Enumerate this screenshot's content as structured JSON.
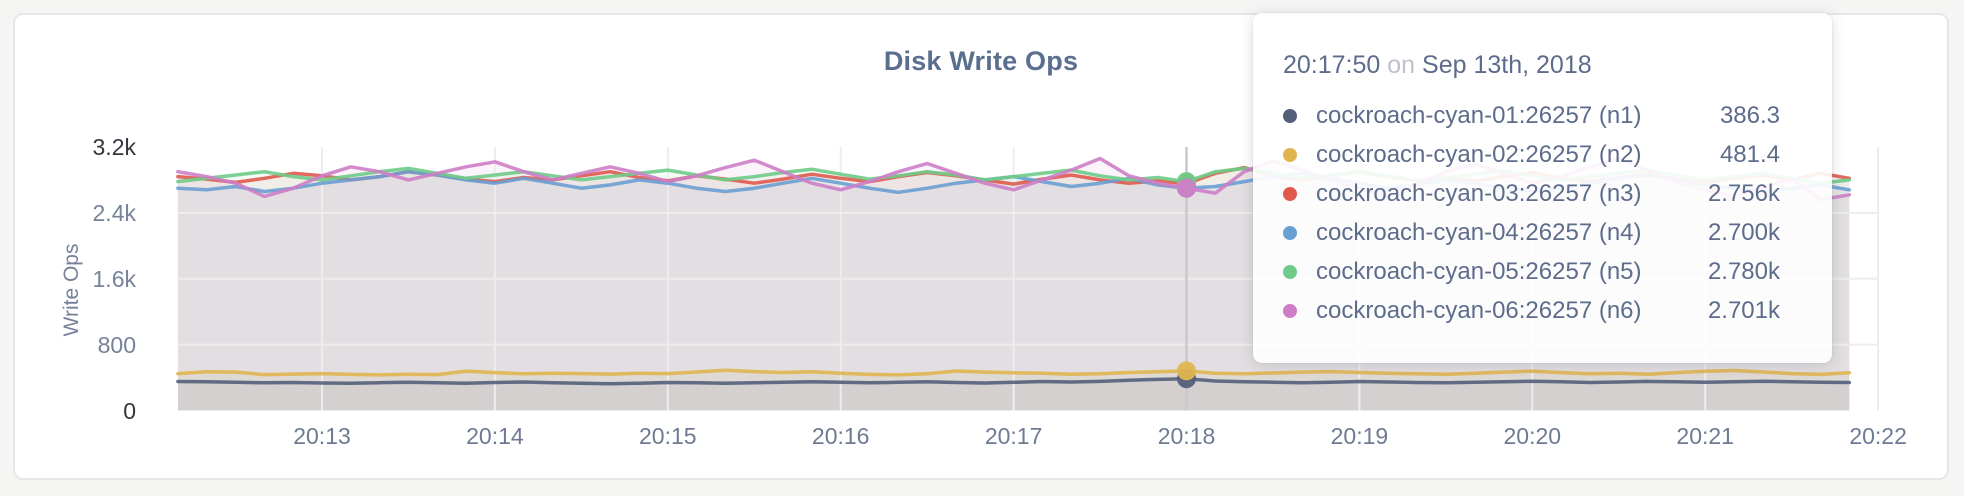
{
  "page": {
    "background": "#f5f5f4",
    "card_background": "#ffffff",
    "card_border": "#e7e7e7"
  },
  "chart_data": {
    "type": "line",
    "title": "Disk Write Ops",
    "ylabel": "Write Ops",
    "ylim": [
      0,
      3200
    ],
    "grid": "on",
    "legend_position": "none (series listed in hover tooltip)",
    "y_ticks": [
      {
        "value": 3200,
        "label": "3.2k",
        "strong": true
      },
      {
        "value": 2400,
        "label": "2.4k",
        "strong": false
      },
      {
        "value": 1600,
        "label": "1.6k",
        "strong": false
      },
      {
        "value": 800,
        "label": "800",
        "strong": false
      },
      {
        "value": 0,
        "label": "0",
        "strong": true
      }
    ],
    "x_ticks": [
      {
        "t": 780,
        "label": "20:13"
      },
      {
        "t": 840,
        "label": "20:14"
      },
      {
        "t": 900,
        "label": "20:15"
      },
      {
        "t": 960,
        "label": "20:16"
      },
      {
        "t": 1020,
        "label": "20:17"
      },
      {
        "t": 1080,
        "label": "20:18"
      },
      {
        "t": 1140,
        "label": "20:19"
      },
      {
        "t": 1200,
        "label": "20:20"
      },
      {
        "t": 1260,
        "label": "20:21"
      },
      {
        "t": 1320,
        "label": "20:22"
      }
    ],
    "x_unit": "time of day (Sep 13th, 2018), seconds after 20:00:00",
    "t_start": 730,
    "t_step": 10,
    "n_points": 59,
    "hover": {
      "index": 35,
      "time": "20:17:50",
      "date": "Sep 13th, 2018"
    },
    "series": [
      {
        "name": "cockroach-cyan-01:26257 (n1)",
        "color": "#535f7a",
        "values": [
          352,
          348,
          342,
          336,
          340,
          334,
          330,
          338,
          344,
          336,
          332,
          340,
          346,
          338,
          330,
          326,
          332,
          340,
          336,
          330,
          336,
          344,
          350,
          342,
          336,
          342,
          348,
          340,
          334,
          342,
          352,
          346,
          354,
          368,
          378,
          386.3,
          358,
          350,
          344,
          338,
          344,
          352,
          346,
          340,
          336,
          342,
          350,
          356,
          348,
          340,
          346,
          354,
          348,
          342,
          348,
          356,
          350,
          344,
          340
        ]
      },
      {
        "name": "cockroach-cyan-02:26257 (n2)",
        "color": "#e0b54f",
        "values": [
          448,
          470,
          466,
          436,
          442,
          448,
          438,
          432,
          440,
          436,
          478,
          460,
          446,
          452,
          448,
          442,
          452,
          448,
          468,
          488,
          472,
          462,
          470,
          452,
          438,
          432,
          446,
          480,
          466,
          458,
          452,
          440,
          446,
          462,
          470,
          481.4,
          452,
          446,
          456,
          466,
          472,
          462,
          452,
          446,
          440,
          452,
          466,
          478,
          460,
          446,
          452,
          440,
          460,
          476,
          486,
          468,
          448,
          438,
          458
        ]
      },
      {
        "name": "cockroach-cyan-03:26257 (n3)",
        "color": "#df5a4d",
        "values": [
          2840,
          2810,
          2770,
          2820,
          2880,
          2850,
          2800,
          2840,
          2900,
          2860,
          2810,
          2780,
          2830,
          2800,
          2850,
          2900,
          2830,
          2790,
          2850,
          2810,
          2760,
          2810,
          2870,
          2820,
          2780,
          2840,
          2890,
          2850,
          2800,
          2750,
          2810,
          2860,
          2800,
          2760,
          2790,
          2756,
          2880,
          2950,
          2850,
          2800,
          2850,
          2900,
          2840,
          2790,
          2830,
          2790,
          2840,
          2890,
          2820,
          2780,
          2830,
          2870,
          2810,
          2770,
          2820,
          2860,
          2800,
          2880,
          2820
        ]
      },
      {
        "name": "cockroach-cyan-04:26257 (n4)",
        "color": "#6a9fd3",
        "values": [
          2700,
          2680,
          2720,
          2660,
          2700,
          2760,
          2800,
          2840,
          2900,
          2860,
          2800,
          2760,
          2820,
          2760,
          2700,
          2740,
          2800,
          2760,
          2700,
          2660,
          2700,
          2760,
          2820,
          2760,
          2700,
          2650,
          2700,
          2760,
          2800,
          2840,
          2780,
          2720,
          2760,
          2820,
          2740,
          2700,
          2720,
          2780,
          2840,
          2880,
          2820,
          2760,
          2700,
          2740,
          2800,
          2760,
          2700,
          2660,
          2700,
          2760,
          2820,
          2860,
          2800,
          2740,
          2700,
          2660,
          2700,
          2740,
          2680
        ]
      },
      {
        "name": "cockroach-cyan-05:26257 (n5)",
        "color": "#6fcb88",
        "values": [
          2780,
          2820,
          2860,
          2900,
          2840,
          2800,
          2850,
          2900,
          2940,
          2880,
          2820,
          2860,
          2900,
          2850,
          2800,
          2840,
          2880,
          2920,
          2860,
          2800,
          2840,
          2890,
          2930,
          2870,
          2810,
          2850,
          2900,
          2860,
          2800,
          2840,
          2880,
          2920,
          2850,
          2800,
          2830,
          2780,
          2900,
          2940,
          2880,
          2820,
          2860,
          2900,
          2850,
          2790,
          2830,
          2870,
          2910,
          2850,
          2800,
          2840,
          2880,
          2920,
          2860,
          2800,
          2840,
          2880,
          2820,
          2760,
          2800
        ]
      },
      {
        "name": "cockroach-cyan-06:26257 (n6)",
        "color": "#cd7ec6",
        "values": [
          2900,
          2840,
          2760,
          2600,
          2700,
          2850,
          2960,
          2900,
          2800,
          2880,
          2960,
          3020,
          2900,
          2800,
          2880,
          2960,
          2880,
          2780,
          2850,
          2950,
          3040,
          2900,
          2760,
          2680,
          2780,
          2900,
          3000,
          2880,
          2760,
          2680,
          2800,
          2920,
          3060,
          2850,
          2760,
          2701,
          2640,
          2900,
          3030,
          2920,
          2800,
          2700,
          2600,
          2750,
          2900,
          3000,
          2880,
          2760,
          2840,
          2960,
          3060,
          2920,
          2780,
          2680,
          2600,
          2700,
          2820,
          2560,
          2620
        ]
      }
    ]
  },
  "tooltip": {
    "time": "20:17:50",
    "conjunction": "on",
    "date": "Sep 13th, 2018",
    "rows": [
      {
        "name": "cockroach-cyan-01:26257 (n1)",
        "value": "386.3",
        "color": "#535f7a"
      },
      {
        "name": "cockroach-cyan-02:26257 (n2)",
        "value": "481.4",
        "color": "#e0b54f"
      },
      {
        "name": "cockroach-cyan-03:26257 (n3)",
        "value": "2.756k",
        "color": "#df5a4d"
      },
      {
        "name": "cockroach-cyan-04:26257 (n4)",
        "value": "2.700k",
        "color": "#6a9fd3"
      },
      {
        "name": "cockroach-cyan-05:26257 (n5)",
        "value": "2.780k",
        "color": "#6fcb88"
      },
      {
        "name": "cockroach-cyan-06:26257 (n6)",
        "value": "2.701k",
        "color": "#cd7ec6"
      }
    ]
  },
  "style": {
    "gridline_color": "#ededee",
    "hoverline_color": "#c8c8cc",
    "fill_opacity": 0.085,
    "line_width": 3.5,
    "dot_radius": 9.5
  }
}
